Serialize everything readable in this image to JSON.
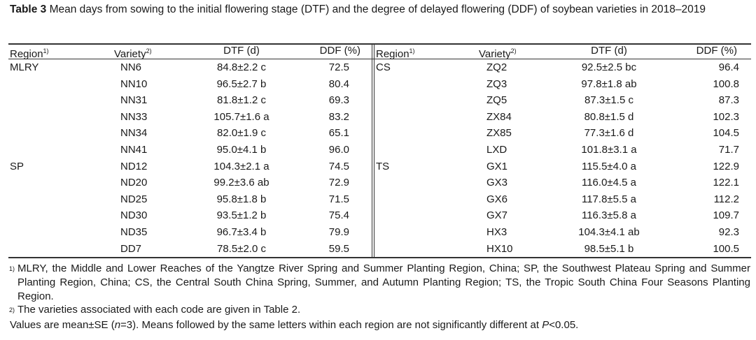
{
  "caption": {
    "label": "Table 3",
    "text": "Mean days from sowing to the initial flowering stage (DTF) and the degree of delayed flowering (DDF) of soybean varieties in 2018–2019"
  },
  "table": {
    "headers": [
      {
        "text": "Region",
        "sup": "1)"
      },
      {
        "text": "Variety",
        "sup": "2)"
      },
      {
        "text": "DTF (d)"
      },
      {
        "text": "DDF (%)"
      }
    ],
    "left": [
      {
        "region": "MLRY",
        "rows": [
          [
            "NN6",
            "84.8±2.2 c",
            "72.5"
          ],
          [
            "NN10",
            "96.5±2.7 b",
            "80.4"
          ],
          [
            "NN31",
            "81.8±1.2 c",
            "69.3"
          ],
          [
            "NN33",
            "105.7±1.6 a",
            "83.2"
          ],
          [
            "NN34",
            "82.0±1.9 c",
            "65.1"
          ],
          [
            "NN41",
            "95.0±4.1 b",
            "96.0"
          ]
        ]
      },
      {
        "region": "SP",
        "rows": [
          [
            "ND12",
            "104.3±2.1 a",
            "74.5"
          ],
          [
            "ND20",
            "99.2±3.6 ab",
            "72.9"
          ],
          [
            "ND25",
            "95.8±1.8 b",
            "71.5"
          ],
          [
            "ND30",
            "93.5±1.2 b",
            "75.4"
          ],
          [
            "ND35",
            "96.7±3.4 b",
            "79.9"
          ],
          [
            "DD7",
            "78.5±2.0 c",
            "59.5"
          ]
        ]
      }
    ],
    "right": [
      {
        "region": "CS",
        "rows": [
          [
            "ZQ2",
            "92.5±2.5 bc",
            "96.4"
          ],
          [
            "ZQ3",
            "97.8±1.8 ab",
            "100.8"
          ],
          [
            "ZQ5",
            "87.3±1.5 c",
            "87.3"
          ],
          [
            "ZX84",
            "80.8±1.5 d",
            "102.3"
          ],
          [
            "ZX85",
            "77.3±1.6 d",
            "104.5"
          ],
          [
            "LXD",
            "101.8±3.1 a",
            "71.7"
          ]
        ]
      },
      {
        "region": "TS",
        "rows": [
          [
            "GX1",
            "115.5±4.0 a",
            "122.9"
          ],
          [
            "GX3",
            "116.0±4.5 a",
            "122.1"
          ],
          [
            "GX6",
            "117.8±5.5 a",
            "112.2"
          ],
          [
            "GX7",
            "116.3±5.8 a",
            "109.7"
          ],
          [
            "HX3",
            "104.3±4.1 ab",
            "92.3"
          ],
          [
            "HX10",
            "98.5±5.1 b",
            "100.5"
          ]
        ]
      }
    ]
  },
  "notes": [
    {
      "marker": "1)",
      "text": "MLRY, the Middle and Lower Reaches of the Yangtze River Spring and Summer Planting Region, China; SP, the Southwest Plateau Spring and Summer Planting Region, China; CS, the Central South China Spring, Summer, and Autumn Planting Region; TS, the Tropic South China Four Seasons Planting Region."
    },
    {
      "marker": "2)",
      "text": "The varieties associated with each code are given in Table 2."
    }
  ],
  "final_note": [
    "Values are mean±SE (",
    "n",
    "=3).  Means followed by the same letters within each region are not significantly different at ",
    "P",
    "<0.05."
  ]
}
